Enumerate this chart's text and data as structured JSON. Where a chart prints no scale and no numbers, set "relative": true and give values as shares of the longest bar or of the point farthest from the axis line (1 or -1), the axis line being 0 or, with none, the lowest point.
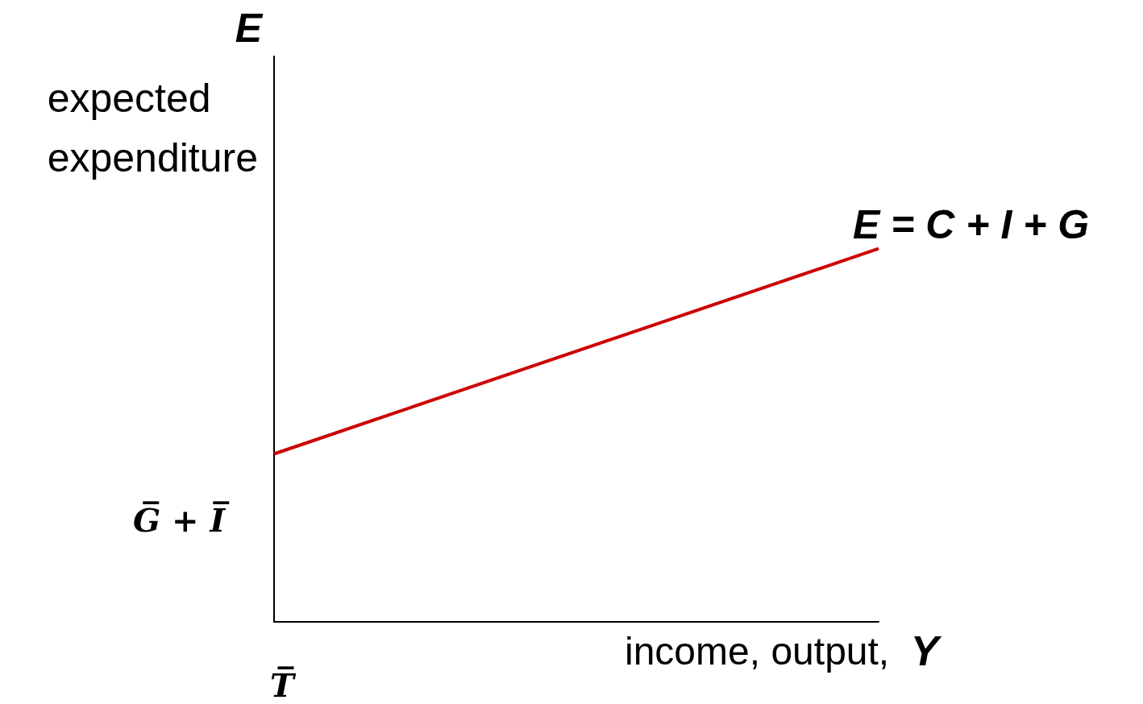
{
  "chart_data": {
    "type": "line",
    "relative": true,
    "xlabel": "income, output, Y",
    "ylabel": "E\nexpected\nexpenditure",
    "categories": [
      null,
      null
    ],
    "series": [
      {
        "name": "E = C + I + G",
        "color": "#cc0000",
        "values": [
          0.45,
          1
        ]
      }
    ],
    "annotations": [
      "G̅ + I̅",
      "T̅"
    ],
    "marker": "none",
    "grid": false,
    "legend": false
  }
}
